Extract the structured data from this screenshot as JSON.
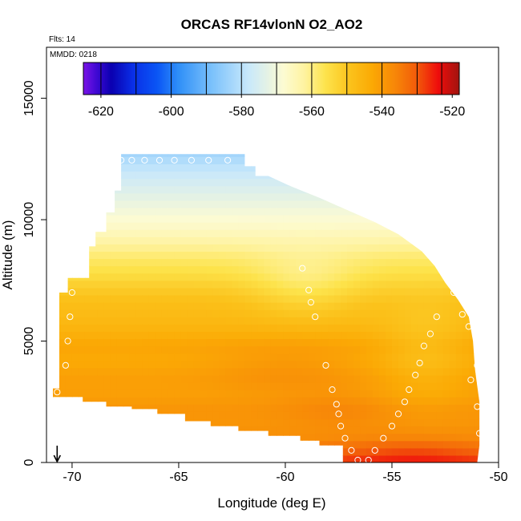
{
  "chart_data": {
    "type": "heatmap",
    "title": "ORCAS RF14vlonN O2_AO2",
    "xlabel": "Longitude (deg E)",
    "ylabel": "Altitude (m)",
    "xlim": [
      -71.2,
      -50
    ],
    "ylim": [
      0,
      17100
    ],
    "xticks": [
      -70,
      -65,
      -60,
      -55,
      -50
    ],
    "xtick_labels": [
      "-70",
      "-65",
      "-60",
      "-55",
      "-50"
    ],
    "yticks": [
      0,
      5000,
      10000,
      15000
    ],
    "ytick_labels": [
      "0",
      "5000",
      "10000",
      "15000"
    ],
    "notes": {
      "flights": "Flts: 14",
      "date": "MMDD: 0218"
    },
    "colorbar": {
      "range": [
        -625,
        -518
      ],
      "ticks": [
        -620,
        -600,
        -580,
        -560,
        -540,
        -520
      ],
      "tick_labels": [
        "-620",
        "-600",
        "-580",
        "-560",
        "-540",
        "-520"
      ],
      "bands": [
        {
          "from": -625,
          "to": -620,
          "color": "#7a14e6"
        },
        {
          "from": -620,
          "to": -610,
          "color": "#0a00b0"
        },
        {
          "from": -610,
          "to": -600,
          "color": "#0a3ef0"
        },
        {
          "from": -600,
          "to": -590,
          "color": "#2f8ff8"
        },
        {
          "from": -590,
          "to": -580,
          "color": "#7ec3fb"
        },
        {
          "from": -580,
          "to": -570,
          "color": "#c8e8fb"
        },
        {
          "from": -570,
          "to": -560,
          "color": "#fdfbd2"
        },
        {
          "from": -560,
          "to": -550,
          "color": "#fde34b"
        },
        {
          "from": -550,
          "to": -540,
          "color": "#fbaa05"
        },
        {
          "from": -540,
          "to": -530,
          "color": "#f76b08"
        },
        {
          "from": -530,
          "to": -523,
          "color": "#ef0d0c"
        },
        {
          "from": -523,
          "to": -518,
          "color": "#a0140f"
        }
      ],
      "stops": [
        [
          -625,
          "#7a14e6"
        ],
        [
          -621,
          "#3c08d2"
        ],
        [
          -617,
          "#0a00b0"
        ],
        [
          -611,
          "#0a2ee6"
        ],
        [
          -604,
          "#0a55f5"
        ],
        [
          -598,
          "#2f8ff8"
        ],
        [
          -588,
          "#7ec3fb"
        ],
        [
          -578,
          "#c8e8fb"
        ],
        [
          -568,
          "#fdfbd2"
        ],
        [
          -562,
          "#fef3a0"
        ],
        [
          -556,
          "#fde34b"
        ],
        [
          -549,
          "#fbc21b"
        ],
        [
          -543,
          "#fbaa05"
        ],
        [
          -536,
          "#f78508"
        ],
        [
          -530,
          "#f25a0a"
        ],
        [
          -524,
          "#ef0d0c"
        ],
        [
          -518,
          "#a0140f"
        ]
      ]
    },
    "field": {
      "description": "O2_AO2 curtain, values in colorbar units by altitude (m) and longitude (deg E)",
      "boundary_lon_alt": [
        [
          -70.9,
          2700
        ],
        [
          -70.9,
          3050
        ],
        [
          -70.6,
          3050
        ],
        [
          -70.6,
          7000
        ],
        [
          -70.2,
          7000
        ],
        [
          -70.2,
          7600
        ],
        [
          -69.2,
          7600
        ],
        [
          -69.2,
          8900
        ],
        [
          -68.9,
          8900
        ],
        [
          -68.9,
          9500
        ],
        [
          -68.4,
          9500
        ],
        [
          -68.4,
          10300
        ],
        [
          -68.0,
          10300
        ],
        [
          -68.0,
          11200
        ],
        [
          -67.7,
          11200
        ],
        [
          -67.7,
          12700
        ],
        [
          -61.9,
          12700
        ],
        [
          -61.9,
          12200
        ],
        [
          -61.4,
          12200
        ],
        [
          -61.4,
          11800
        ],
        [
          -60.8,
          11800
        ],
        [
          -59.8,
          11400
        ],
        [
          -58.4,
          10900
        ],
        [
          -57.1,
          10400
        ],
        [
          -55.8,
          9900
        ],
        [
          -54.7,
          9400
        ],
        [
          -53.6,
          8700
        ],
        [
          -53.0,
          8100
        ],
        [
          -52.5,
          7400
        ],
        [
          -51.9,
          6700
        ],
        [
          -51.4,
          6000
        ],
        [
          -51.2,
          5000
        ],
        [
          -51.1,
          3800
        ],
        [
          -50.9,
          2500
        ],
        [
          -50.9,
          700
        ],
        [
          -51.0,
          0
        ],
        [
          -57.3,
          0
        ],
        [
          -57.3,
          700
        ],
        [
          -58.4,
          700
        ],
        [
          -58.4,
          900
        ],
        [
          -59.3,
          900
        ],
        [
          -59.3,
          1100
        ],
        [
          -60.8,
          1100
        ],
        [
          -60.8,
          1300
        ],
        [
          -62.2,
          1300
        ],
        [
          -62.2,
          1500
        ],
        [
          -63.5,
          1500
        ],
        [
          -63.5,
          1700
        ],
        [
          -64.7,
          1700
        ],
        [
          -64.7,
          2000
        ],
        [
          -66.0,
          2000
        ],
        [
          -66.0,
          2200
        ],
        [
          -67.2,
          2200
        ],
        [
          -67.2,
          2300
        ],
        [
          -68.4,
          2300
        ],
        [
          -68.4,
          2500
        ],
        [
          -69.5,
          2500
        ],
        [
          -69.5,
          2700
        ]
      ],
      "vertical_profile": [
        [
          0,
          -528
        ],
        [
          500,
          -534
        ],
        [
          1000,
          -538
        ],
        [
          1600,
          -539
        ],
        [
          2200,
          -539
        ],
        [
          2800,
          -541
        ],
        [
          3500,
          -541
        ],
        [
          4200,
          -543
        ],
        [
          4800,
          -542
        ],
        [
          5400,
          -545
        ],
        [
          6000,
          -547
        ],
        [
          6600,
          -548
        ],
        [
          7200,
          -551
        ],
        [
          7800,
          -555
        ],
        [
          8400,
          -558
        ],
        [
          9000,
          -562
        ],
        [
          9600,
          -566
        ],
        [
          10200,
          -569
        ],
        [
          10800,
          -572
        ],
        [
          11400,
          -575
        ],
        [
          12000,
          -578
        ],
        [
          12700,
          -583
        ]
      ],
      "features": [
        {
          "lon": -60.0,
          "alt": 3900,
          "dlon": 3.5,
          "dalt": 1100,
          "delta": 3.0
        },
        {
          "lon": -57.5,
          "alt": 2200,
          "dlon": 2.5,
          "dalt": 800,
          "delta": 2.5
        },
        {
          "lon": -53.5,
          "alt": 4500,
          "dlon": 2.0,
          "dalt": 2000,
          "delta": -5.0
        },
        {
          "lon": -59.0,
          "alt": 7300,
          "dlon": 2.5,
          "dalt": 1300,
          "delta": -6.0
        },
        {
          "lon": -54.0,
          "alt": 400,
          "dlon": 3.5,
          "dalt": 700,
          "delta": 5.0
        }
      ]
    },
    "markers": {
      "symbol": "open-circle",
      "arrow_lon": -70.7,
      "points": [
        [
          -70.0,
          7000
        ],
        [
          -70.1,
          6000
        ],
        [
          -70.2,
          5000
        ],
        [
          -70.3,
          4000
        ],
        [
          -70.7,
          2900
        ],
        [
          -67.7,
          12450
        ],
        [
          -67.2,
          12450
        ],
        [
          -66.6,
          12450
        ],
        [
          -65.9,
          12450
        ],
        [
          -65.2,
          12450
        ],
        [
          -64.4,
          12450
        ],
        [
          -63.6,
          12450
        ],
        [
          -62.7,
          12450
        ],
        [
          -59.2,
          8000
        ],
        [
          -58.9,
          7100
        ],
        [
          -58.8,
          6600
        ],
        [
          -58.6,
          6000
        ],
        [
          -58.1,
          4000
        ],
        [
          -57.8,
          3000
        ],
        [
          -57.6,
          2400
        ],
        [
          -57.5,
          2000
        ],
        [
          -57.4,
          1500
        ],
        [
          -57.2,
          1000
        ],
        [
          -56.9,
          500
        ],
        [
          -56.6,
          100
        ],
        [
          -56.1,
          100
        ],
        [
          -55.8,
          500
        ],
        [
          -55.4,
          1000
        ],
        [
          -55.0,
          1500
        ],
        [
          -54.7,
          2000
        ],
        [
          -54.4,
          2500
        ],
        [
          -54.2,
          3000
        ],
        [
          -53.9,
          3600
        ],
        [
          -53.7,
          4100
        ],
        [
          -53.5,
          4800
        ],
        [
          -53.2,
          5300
        ],
        [
          -52.9,
          6000
        ],
        [
          -52.1,
          7000
        ],
        [
          -51.7,
          6100
        ],
        [
          -51.4,
          5600
        ],
        [
          -51.0,
          4000
        ],
        [
          -50.8,
          3000
        ],
        [
          -50.7,
          2500
        ],
        [
          -50.6,
          2000
        ],
        [
          -50.6,
          1500
        ],
        [
          -50.5,
          1000
        ],
        [
          -50.5,
          500
        ],
        [
          -50.4,
          100
        ],
        [
          -51.3,
          3400
        ],
        [
          -51.0,
          2300
        ],
        [
          -50.9,
          1200
        ]
      ]
    }
  }
}
